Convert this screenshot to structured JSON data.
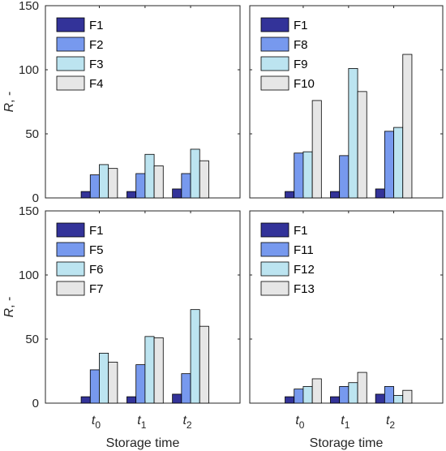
{
  "chart_data": [
    {
      "type": "bar",
      "categories": [
        "t0",
        "t1",
        "t2"
      ],
      "series": [
        {
          "name": "F1",
          "values": [
            5,
            5,
            7
          ],
          "color": "#333399"
        },
        {
          "name": "F2",
          "values": [
            18,
            19,
            19
          ],
          "color": "#7799ee"
        },
        {
          "name": "F3",
          "values": [
            26,
            34,
            38
          ],
          "color": "#bce4f0"
        },
        {
          "name": "F4",
          "values": [
            23,
            25,
            29
          ],
          "color": "#e6e6e6"
        }
      ],
      "ylim": [
        0,
        150
      ],
      "yticks": [
        "0",
        "50",
        "100",
        "150"
      ],
      "ylabel": "R, -",
      "xlabel": "",
      "legend": "top-left",
      "grid": false
    },
    {
      "type": "bar",
      "categories": [
        "t0",
        "t1",
        "t2"
      ],
      "series": [
        {
          "name": "F1",
          "values": [
            5,
            5,
            7
          ],
          "color": "#333399"
        },
        {
          "name": "F8",
          "values": [
            35,
            33,
            52
          ],
          "color": "#7799ee"
        },
        {
          "name": "F9",
          "values": [
            36,
            101,
            55
          ],
          "color": "#bce4f0"
        },
        {
          "name": "F10",
          "values": [
            76,
            83,
            112
          ],
          "color": "#e6e6e6"
        }
      ],
      "ylim": [
        0,
        150
      ],
      "yticks": [],
      "ylabel": "",
      "xlabel": "",
      "legend": "top-left",
      "grid": false
    },
    {
      "type": "bar",
      "categories": [
        "t0",
        "t1",
        "t2"
      ],
      "series": [
        {
          "name": "F1",
          "values": [
            5,
            5,
            7
          ],
          "color": "#333399"
        },
        {
          "name": "F5",
          "values": [
            26,
            30,
            23
          ],
          "color": "#7799ee"
        },
        {
          "name": "F6",
          "values": [
            39,
            52,
            73
          ],
          "color": "#bce4f0"
        },
        {
          "name": "F7",
          "values": [
            32,
            51,
            60
          ],
          "color": "#e6e6e6"
        }
      ],
      "ylim": [
        0,
        150
      ],
      "yticks": [
        "0",
        "50",
        "100",
        "150"
      ],
      "ylabel": "R, -",
      "xlabel": "Storage time",
      "xtick_labels": [
        {
          "base": "t",
          "sub": "0"
        },
        {
          "base": "t",
          "sub": "1"
        },
        {
          "base": "t",
          "sub": "2"
        }
      ],
      "legend": "top-left",
      "grid": false
    },
    {
      "type": "bar",
      "categories": [
        "t0",
        "t1",
        "t2"
      ],
      "series": [
        {
          "name": "F1",
          "values": [
            5,
            5,
            7
          ],
          "color": "#333399"
        },
        {
          "name": "F11",
          "values": [
            11,
            13,
            13
          ],
          "color": "#7799ee"
        },
        {
          "name": "F12",
          "values": [
            13,
            16,
            6
          ],
          "color": "#bce4f0"
        },
        {
          "name": "F13",
          "values": [
            19,
            24,
            10
          ],
          "color": "#e6e6e6"
        }
      ],
      "ylim": [
        0,
        150
      ],
      "yticks": [],
      "ylabel": "",
      "xlabel": "Storage time",
      "xtick_labels": [
        {
          "base": "t",
          "sub": "0"
        },
        {
          "base": "t",
          "sub": "1"
        },
        {
          "base": "t",
          "sub": "2"
        }
      ],
      "legend": "top-left",
      "grid": false
    }
  ]
}
